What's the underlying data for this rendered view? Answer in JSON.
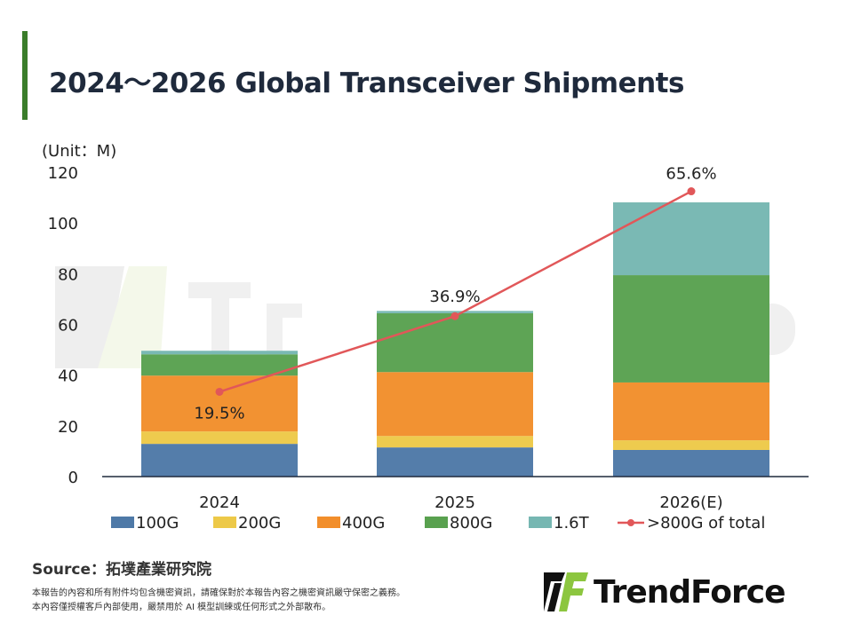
{
  "title": "2024～2026 Global Transceiver Shipments",
  "unit_label": "(Unit：M)",
  "source": "Source：拓墣產業研究院",
  "disclaimer": [
    "本報告的內容和所有附件均包含機密資訊，請確保對於本報告內容之機密資訊嚴守保密之義務。",
    "本內容僅授權客戶內部使用，嚴禁用於 AI 模型訓練或任何形式之外部散布。"
  ],
  "logo_text": "TrendForce",
  "watermark_text": "TrendForce",
  "chart_data": {
    "type": "bar",
    "stacked": true,
    "categories": [
      "2024",
      "2025",
      "2026(E)"
    ],
    "ylim": [
      0,
      120
    ],
    "yticks": [
      0,
      20,
      40,
      60,
      80,
      100,
      120
    ],
    "grid": false,
    "legend_position": "bottom",
    "series": [
      {
        "name": "100G",
        "color": "#4e79a7",
        "values": [
          12.9,
          11.5,
          10.5
        ]
      },
      {
        "name": "200G",
        "color": "#edc948",
        "values": [
          4.9,
          4.5,
          3.8
        ]
      },
      {
        "name": "400G",
        "color": "#f28e2b",
        "values": [
          22.0,
          25.2,
          22.8
        ]
      },
      {
        "name": "800G",
        "color": "#59a14f",
        "values": [
          8.4,
          23.2,
          42.3
        ]
      },
      {
        "name": "1.6T",
        "color": "#76b7b2",
        "values": [
          1.4,
          0.9,
          28.7
        ]
      }
    ],
    "line_series": {
      "name": ">800G of total",
      "color": "#e15759",
      "values": [
        19.5,
        36.9,
        65.6
      ],
      "labels": [
        "19.5%",
        "36.9%",
        "65.6%"
      ],
      "secondary_axis_range": [
        0,
        70
      ],
      "secondary_axis_visible": false
    }
  }
}
